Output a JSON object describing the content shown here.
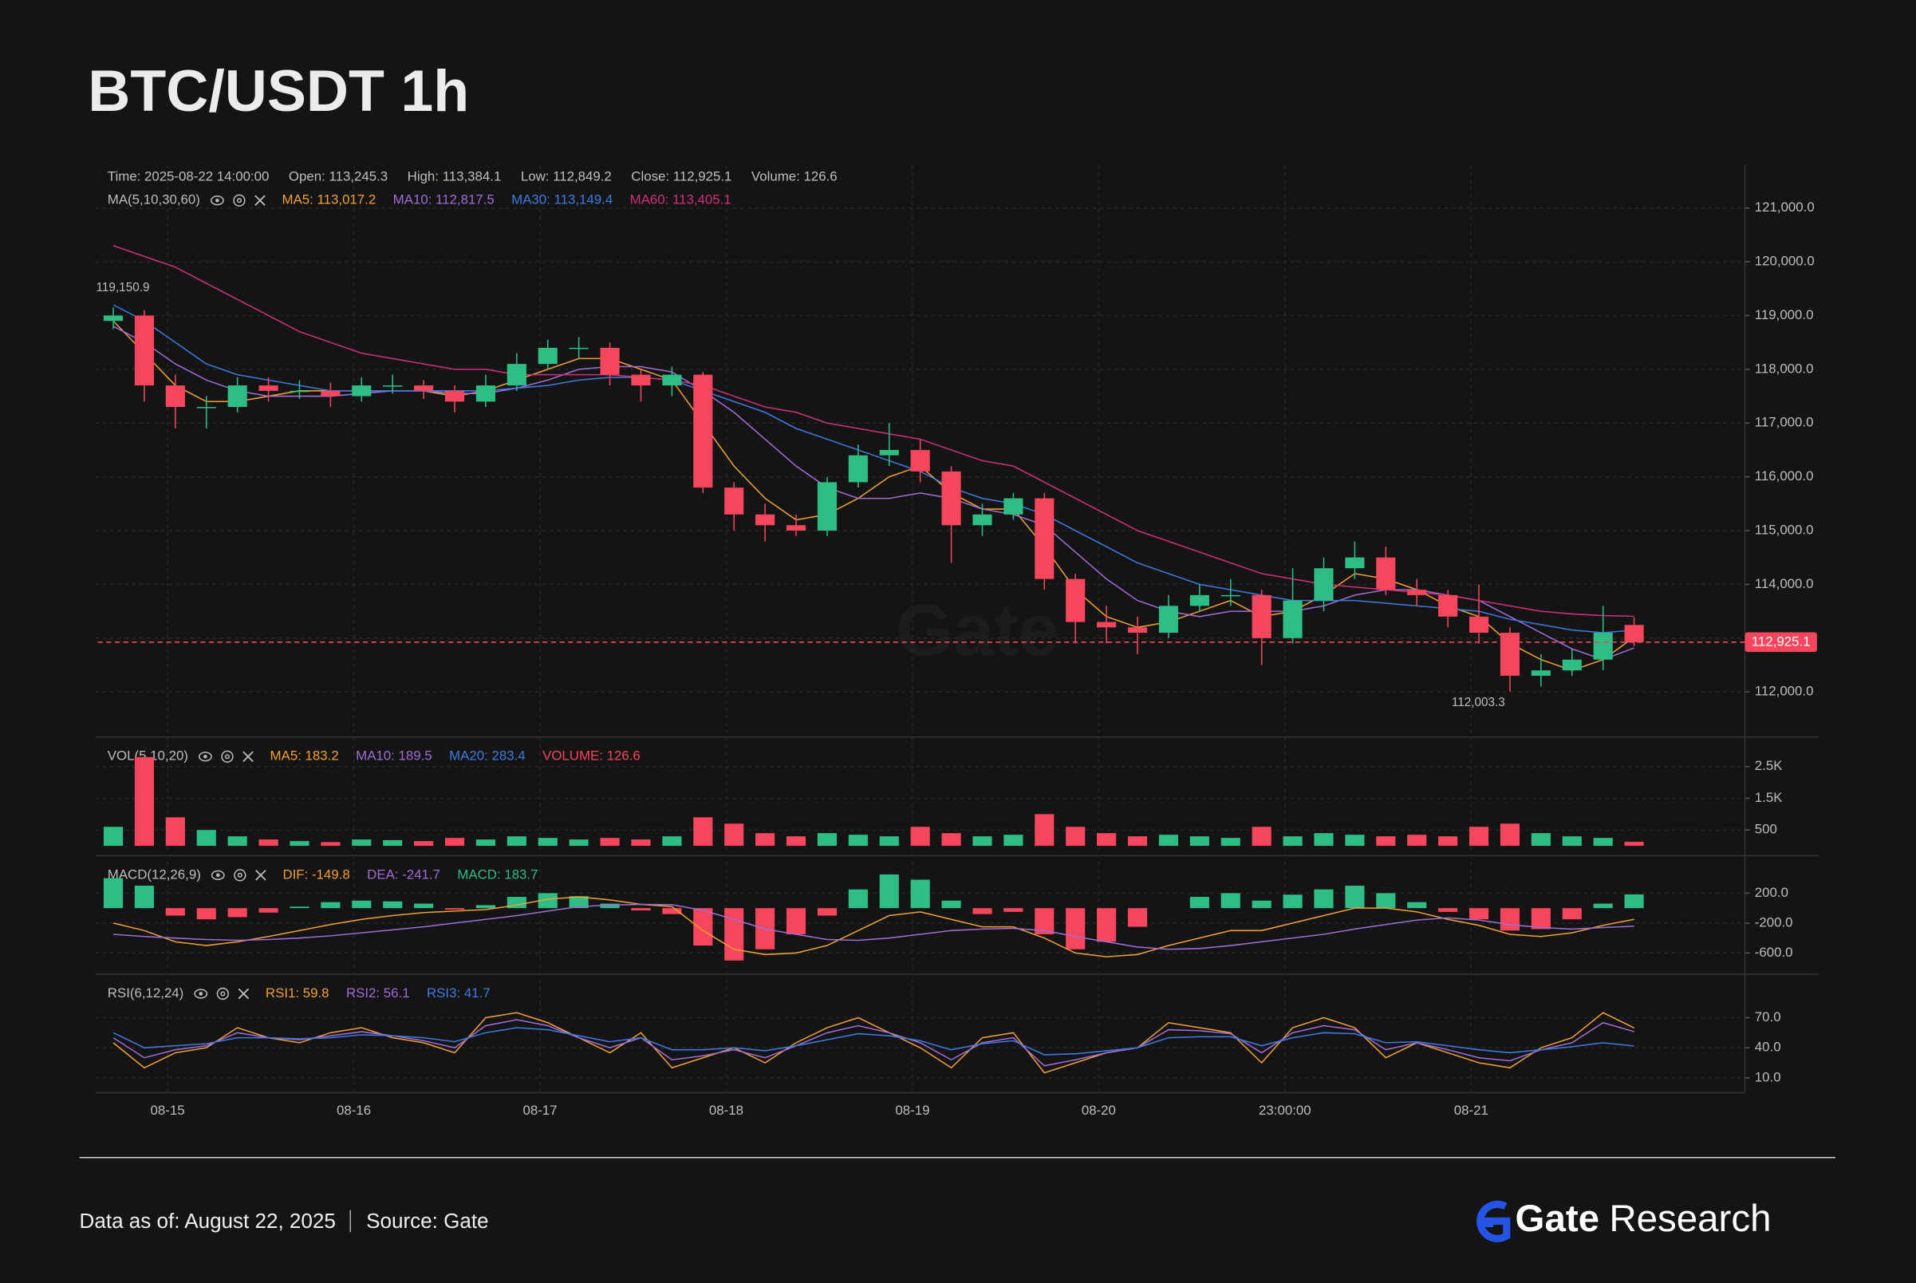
{
  "title": "BTC/USDT 1h",
  "watermark": "Gate",
  "footer": {
    "date": "Data as of: August 22, 2025",
    "source": "Source: Gate",
    "brand": "Gate",
    "brand_suffix": "Research"
  },
  "chart_data": [
    {
      "type": "candlestick",
      "info": [
        "Time: 2025-08-22 14:00:00",
        "Open: 113,245.3",
        "High: 113,384.1",
        "Low: 112,849.2",
        "Close: 112,925.1",
        "Volume: 126.6"
      ],
      "legend_title": "MA(5,10,30,60)",
      "up_color": "#2ebd85",
      "down_color": "#f6465d",
      "open": [
        118900,
        119000,
        117700,
        117300,
        117300,
        117700,
        117600,
        117600,
        117500,
        117700,
        117700,
        117600,
        117400,
        117700,
        118100,
        118400,
        118400,
        117900,
        117700,
        117900,
        115800,
        115300,
        115100,
        115000,
        115900,
        116400,
        116500,
        116100,
        115100,
        115300,
        115600,
        114100,
        113300,
        113200,
        113100,
        113600,
        113800,
        113800,
        113000,
        113700,
        114300,
        114500,
        113900,
        113800,
        113400,
        113100,
        112300,
        112400,
        112600,
        113245.3
      ],
      "high": [
        119150.9,
        119100,
        117900,
        117500,
        117850,
        117850,
        117800,
        117750,
        117850,
        117900,
        117800,
        117700,
        117900,
        118300,
        118550,
        118600,
        118500,
        118000,
        118050,
        117950,
        115900,
        115500,
        115300,
        116000,
        116600,
        117000,
        116700,
        116200,
        115500,
        115700,
        115700,
        114200,
        113600,
        113400,
        113800,
        114000,
        114100,
        113900,
        114300,
        114500,
        114800,
        114700,
        114100,
        113900,
        114000,
        113200,
        112700,
        112800,
        113600,
        113384.1
      ],
      "low": [
        118750,
        117400,
        116900,
        116900,
        117200,
        117400,
        117450,
        117300,
        117400,
        117550,
        117450,
        117200,
        117300,
        117600,
        118000,
        118200,
        117700,
        117400,
        117500,
        115700,
        115000,
        114800,
        114900,
        114900,
        115800,
        116200,
        115900,
        114400,
        114900,
        115200,
        113900,
        112900,
        112900,
        112700,
        113000,
        113500,
        113600,
        112500,
        112900,
        113500,
        114100,
        113800,
        113600,
        113200,
        112900,
        112003.3,
        112100,
        112300,
        112400,
        112849.2
      ],
      "close": [
        119000,
        117700,
        117300,
        117300,
        117700,
        117600,
        117600,
        117500,
        117700,
        117700,
        117600,
        117400,
        117700,
        118100,
        118400,
        118400,
        117900,
        117700,
        117900,
        115800,
        115300,
        115100,
        115000,
        115900,
        116400,
        116500,
        116100,
        115100,
        115300,
        115600,
        114100,
        113300,
        113200,
        113100,
        113600,
        113800,
        113800,
        113000,
        113700,
        114300,
        114500,
        113900,
        113800,
        113400,
        113100,
        112300,
        112400,
        112600,
        113100,
        112925.1
      ],
      "series": [
        {
          "name": "MA5: 113,017.2",
          "color": "#f0a030",
          "values": [
            118900,
            118300,
            117700,
            117400,
            117400,
            117500,
            117600,
            117600,
            117600,
            117600,
            117600,
            117500,
            117600,
            117800,
            118000,
            118200,
            118200,
            118000,
            117800,
            117000,
            116200,
            115600,
            115200,
            115300,
            115600,
            116000,
            116200,
            115700,
            115400,
            115400,
            114700,
            113900,
            113400,
            113200,
            113300,
            113500,
            113700,
            113400,
            113500,
            113800,
            114200,
            114100,
            113900,
            113600,
            113400,
            112900,
            112600,
            112400,
            112600,
            113017.2
          ]
        },
        {
          "name": "MA10: 112,817.5",
          "color": "#a06cd5",
          "values": [
            118800,
            118500,
            118100,
            117800,
            117600,
            117500,
            117500,
            117500,
            117550,
            117600,
            117600,
            117550,
            117550,
            117650,
            117800,
            118000,
            118050,
            118050,
            117950,
            117600,
            117200,
            116700,
            116200,
            115800,
            115600,
            115600,
            115700,
            115600,
            115400,
            115300,
            115100,
            114600,
            114100,
            113700,
            113500,
            113400,
            113500,
            113500,
            113500,
            113600,
            113800,
            113900,
            113900,
            113800,
            113700,
            113400,
            113100,
            112800,
            112600,
            112817.5
          ]
        },
        {
          "name": "MA30: 113,149.4",
          "color": "#3d7be0",
          "values": [
            119200,
            118900,
            118500,
            118100,
            117900,
            117800,
            117700,
            117600,
            117600,
            117600,
            117600,
            117600,
            117600,
            117650,
            117700,
            117800,
            117850,
            117850,
            117800,
            117600,
            117400,
            117200,
            116900,
            116700,
            116500,
            116300,
            116100,
            115800,
            115600,
            115500,
            115300,
            115000,
            114700,
            114400,
            114200,
            114000,
            113900,
            113800,
            113700,
            113700,
            113700,
            113650,
            113600,
            113550,
            113500,
            113350,
            113250,
            113150,
            113100,
            113149.4
          ]
        },
        {
          "name": "MA60: 113,405.1",
          "color": "#d0307a",
          "values": [
            120300,
            120100,
            119900,
            119600,
            119300,
            119000,
            118700,
            118500,
            118300,
            118200,
            118100,
            118000,
            118000,
            117900,
            117900,
            117900,
            117900,
            117850,
            117800,
            117700,
            117500,
            117300,
            117200,
            117000,
            116900,
            116800,
            116700,
            116500,
            116300,
            116200,
            115900,
            115600,
            115300,
            115000,
            114800,
            114600,
            114400,
            114200,
            114100,
            114000,
            113950,
            113900,
            113850,
            113800,
            113700,
            113600,
            113500,
            113450,
            113420,
            113405.1
          ]
        }
      ],
      "max_label": "119,150.9",
      "min_label": "112,003.3",
      "last_label": "112,925.1",
      "xlim": [
        -0.5,
        49.5
      ],
      "xticks": [
        {
          "value": 1.75,
          "label": "08-15"
        },
        {
          "value": 7.75,
          "label": "08-16"
        },
        {
          "value": 13.75,
          "label": "08-17"
        },
        {
          "value": 19.75,
          "label": "08-18"
        },
        {
          "value": 25.75,
          "label": "08-19"
        },
        {
          "value": 31.75,
          "label": "08-20"
        },
        {
          "value": 37.75,
          "label": "23:00:00"
        },
        {
          "value": 43.75,
          "label": "08-21"
        }
      ],
      "ylim": [
        111160,
        121800
      ],
      "yticks": [
        {
          "value": 112000,
          "label": "112,000.0"
        },
        {
          "value": 113000,
          "label": "113,000.0"
        },
        {
          "value": 114000,
          "label": "114,000.0"
        },
        {
          "value": 115000,
          "label": "115,000.0"
        },
        {
          "value": 116000,
          "label": "116,000.0"
        },
        {
          "value": 117000,
          "label": "117,000.0"
        },
        {
          "value": 118000,
          "label": "118,000.0"
        },
        {
          "value": 119000,
          "label": "119,000.0"
        },
        {
          "value": 120000,
          "label": "120,000.0"
        },
        {
          "value": 121000,
          "label": "121,000.0"
        }
      ],
      "grid": true
    },
    {
      "type": "bar",
      "legend_title": "VOL(5,10,20)",
      "legend": [
        {
          "text": "MA5: 183.2",
          "color": "#f0a030"
        },
        {
          "text": "MA10: 189.5",
          "color": "#a06cd5"
        },
        {
          "text": "MA20: 283.4",
          "color": "#3d7be0"
        },
        {
          "text": "VOLUME: 126.6",
          "color": "#f6465d"
        }
      ],
      "values": [
        600,
        2800,
        900,
        500,
        300,
        200,
        150,
        120,
        200,
        180,
        150,
        250,
        200,
        300,
        250,
        200,
        250,
        200,
        300,
        900,
        700,
        400,
        300,
        400,
        350,
        300,
        600,
        400,
        300,
        350,
        1000,
        600,
        400,
        300,
        350,
        300,
        250,
        600,
        300,
        400,
        350,
        300,
        350,
        300,
        600,
        700,
        400,
        300,
        250,
        126.6
      ],
      "ylim": [
        0,
        3200
      ],
      "yticks": [
        {
          "value": 500,
          "label": "500"
        },
        {
          "value": 1500,
          "label": "1.5K"
        },
        {
          "value": 2500,
          "label": "2.5K"
        }
      ],
      "grid": true
    },
    {
      "type": "macd",
      "legend_title": "MACD(12,26,9)",
      "up_color": "#2ebd85",
      "down_color": "#f6465d",
      "histogram": {
        "name": "MACD: 183.7",
        "color": "#2ebd85",
        "values": [
          400,
          300,
          -100,
          -150,
          -120,
          -60,
          20,
          80,
          100,
          90,
          60,
          -20,
          40,
          150,
          200,
          160,
          60,
          -30,
          -80,
          -500,
          -700,
          -550,
          -350,
          -100,
          250,
          450,
          380,
          100,
          -80,
          -50,
          -350,
          -550,
          -450,
          -250,
          0,
          150,
          200,
          100,
          180,
          250,
          300,
          200,
          80,
          -50,
          -150,
          -300,
          -280,
          -150,
          60,
          183.7
        ]
      },
      "series": [
        {
          "name": "DIF: -149.8",
          "color": "#f0a030",
          "values": [
            -200,
            -300,
            -450,
            -500,
            -450,
            -380,
            -300,
            -220,
            -150,
            -100,
            -60,
            -40,
            -20,
            40,
            120,
            150,
            110,
            50,
            20,
            -300,
            -550,
            -620,
            -600,
            -500,
            -300,
            -100,
            -50,
            -150,
            -250,
            -250,
            -400,
            -600,
            -650,
            -620,
            -500,
            -400,
            -300,
            -300,
            -200,
            -100,
            0,
            0,
            -50,
            -150,
            -230,
            -350,
            -380,
            -330,
            -230,
            -149.8
          ]
        },
        {
          "name": "DEA: -241.7",
          "color": "#a06cd5",
          "values": [
            -350,
            -380,
            -400,
            -420,
            -430,
            -420,
            -400,
            -370,
            -330,
            -290,
            -250,
            -200,
            -150,
            -100,
            -40,
            20,
            40,
            50,
            45,
            -30,
            -150,
            -280,
            -350,
            -420,
            -430,
            -400,
            -350,
            -300,
            -280,
            -270,
            -300,
            -380,
            -450,
            -520,
            -550,
            -540,
            -500,
            -450,
            -400,
            -350,
            -280,
            -220,
            -160,
            -130,
            -160,
            -220,
            -260,
            -280,
            -260,
            -241.7
          ]
        }
      ],
      "ylim": [
        -850,
        620
      ],
      "yticks": [
        {
          "value": -600,
          "label": "-600.0"
        },
        {
          "value": -200,
          "label": "-200.0"
        },
        {
          "value": 200,
          "label": "200.0"
        }
      ],
      "grid": true
    },
    {
      "type": "line",
      "legend_title": "RSI(6,12,24)",
      "series": [
        {
          "name": "RSI1: 59.8",
          "color": "#f0a030",
          "values": [
            45,
            20,
            35,
            40,
            60,
            50,
            45,
            55,
            60,
            50,
            45,
            35,
            70,
            75,
            65,
            50,
            35,
            55,
            20,
            30,
            40,
            25,
            45,
            60,
            70,
            55,
            40,
            20,
            50,
            55,
            15,
            25,
            35,
            40,
            65,
            60,
            55,
            25,
            60,
            70,
            60,
            30,
            45,
            35,
            25,
            20,
            40,
            50,
            75,
            59.8
          ]
        },
        {
          "name": "RSI2: 56.1",
          "color": "#a06cd5",
          "values": [
            50,
            30,
            38,
            42,
            55,
            50,
            48,
            52,
            56,
            52,
            47,
            40,
            62,
            68,
            62,
            50,
            40,
            50,
            28,
            32,
            38,
            30,
            42,
            55,
            62,
            55,
            45,
            28,
            45,
            50,
            22,
            28,
            35,
            40,
            58,
            57,
            54,
            35,
            55,
            62,
            58,
            38,
            45,
            38,
            30,
            27,
            38,
            45,
            65,
            56.1
          ]
        },
        {
          "name": "RSI3: 41.7",
          "color": "#3d7be0",
          "values": [
            55,
            40,
            42,
            44,
            50,
            50,
            49,
            50,
            53,
            52,
            50,
            46,
            55,
            60,
            58,
            52,
            46,
            50,
            38,
            38,
            40,
            37,
            42,
            48,
            54,
            52,
            47,
            38,
            44,
            47,
            33,
            34,
            37,
            40,
            50,
            51,
            51,
            42,
            50,
            55,
            54,
            45,
            46,
            42,
            38,
            35,
            38,
            41,
            45,
            41.7
          ]
        }
      ],
      "ylim": [
        0,
        100
      ],
      "yticks": [
        {
          "value": 10,
          "label": "10.0"
        },
        {
          "value": 40,
          "label": "40.0"
        },
        {
          "value": 70,
          "label": "70.0"
        }
      ],
      "grid": true
    }
  ]
}
